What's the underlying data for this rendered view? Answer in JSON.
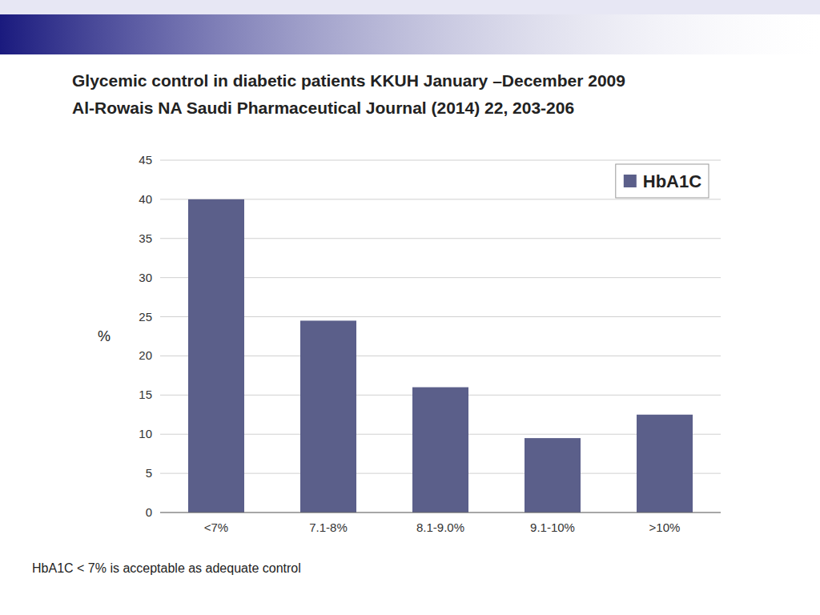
{
  "chart_data": {
    "type": "bar",
    "title": "Glycemic control in diabetic patients KKUH January –December 2009",
    "subtitle": "Al-Rowais NA Saudi Pharmaceutical Journal (2014) 22, 203-206",
    "categories": [
      "<7%",
      "7.1-8%",
      "8.1-9.0%",
      "9.1-10%",
      ">10%"
    ],
    "series": [
      {
        "name": "HbA1C",
        "color": "#5b5f8a",
        "values": [
          40,
          24.5,
          16,
          9.5,
          12.5
        ]
      }
    ],
    "ylabel": "%",
    "ylim": [
      0,
      45
    ],
    "yticks": [
      0,
      5,
      10,
      15,
      20,
      25,
      30,
      35,
      40,
      45
    ],
    "grid": true,
    "legend": "upper right",
    "annotations": [
      "HbA1C < 7% is acceptable as adequate control"
    ]
  }
}
